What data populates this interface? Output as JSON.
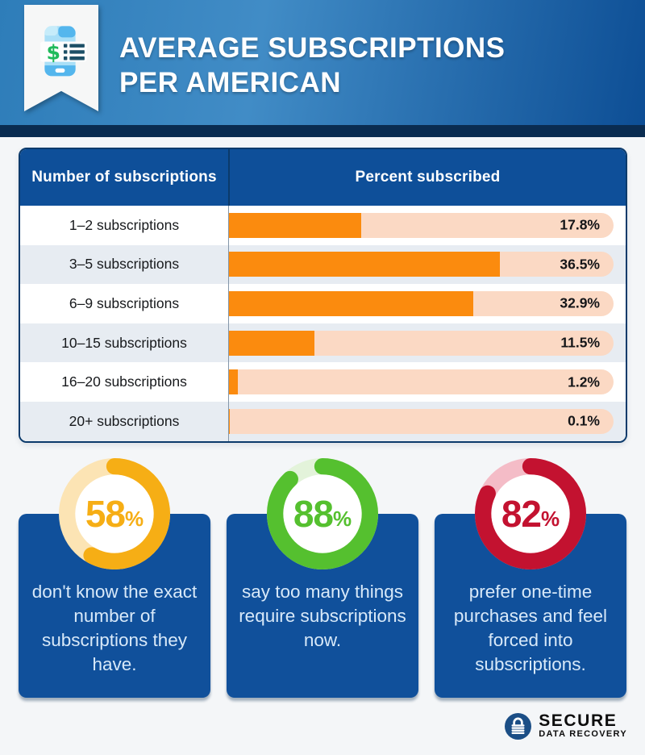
{
  "header": {
    "title_line1": "AVERAGE SUBSCRIPTIONS",
    "title_line2": "PER AMERICAN",
    "icon": "phone-dollar-list-icon"
  },
  "table": {
    "col1_header": "Number of subscriptions",
    "col2_header": "Percent subscribed",
    "bar_color": "#fb8b0e",
    "track_color": "#fbd9c4",
    "rows": [
      {
        "label": "1–2 subscriptions",
        "value": 17.8,
        "pct": "17.8%"
      },
      {
        "label": "3–5 subscriptions",
        "value": 36.5,
        "pct": "36.5%"
      },
      {
        "label": "6–9 subscriptions",
        "value": 32.9,
        "pct": "32.9%"
      },
      {
        "label": "10–15 subscriptions",
        "value": 11.5,
        "pct": "11.5%"
      },
      {
        "label": "16–20 subscriptions",
        "value": 1.2,
        "pct": "1.2%"
      },
      {
        "label": "20+ subscriptions",
        "value": 0.1,
        "pct": "0.1%"
      }
    ]
  },
  "stats": [
    {
      "value": 58,
      "number": "58",
      "unit": "%",
      "ring_color": "#f6ae15",
      "track_color": "#fce4b4",
      "text": "don't know the exact number of subscriptions they have."
    },
    {
      "value": 88,
      "number": "88",
      "unit": "%",
      "ring_color": "#55c02f",
      "track_color": "#e3f3da",
      "text": "say too many things require subscriptions now."
    },
    {
      "value": 82,
      "number": "82",
      "unit": "%",
      "ring_color": "#c31230",
      "track_color": "#f4bcc7",
      "text": "prefer one-time purchases and feel forced into subscriptions."
    }
  ],
  "footer": {
    "brand_line1": "SECURE",
    "brand_line2": "DATA RECOVERY",
    "icon": "padlock-icon"
  },
  "chart_data": [
    {
      "type": "bar",
      "orientation": "horizontal",
      "title": "AVERAGE SUBSCRIPTIONS PER AMERICAN",
      "categories": [
        "1–2 subscriptions",
        "3–5 subscriptions",
        "6–9 subscriptions",
        "10–15 subscriptions",
        "16–20 subscriptions",
        "20+ subscriptions"
      ],
      "values": [
        17.8,
        36.5,
        32.9,
        11.5,
        1.2,
        0.1
      ],
      "value_labels": [
        "17.8%",
        "36.5%",
        "32.9%",
        "11.5%",
        "1.2%",
        "0.1%"
      ],
      "xlabel": "Percent subscribed",
      "ylabel": "Number of subscriptions",
      "bar_color": "#fb8b0e",
      "grid": false,
      "legend": false
    },
    {
      "type": "pie",
      "subtype": "donut",
      "value": 58,
      "color": "#f6ae15",
      "label": "don't know the exact number of subscriptions they have."
    },
    {
      "type": "pie",
      "subtype": "donut",
      "value": 88,
      "color": "#55c02f",
      "label": "say too many things require subscriptions now."
    },
    {
      "type": "pie",
      "subtype": "donut",
      "value": 82,
      "color": "#c31230",
      "label": "prefer one-time purchases and feel forced into subscriptions."
    }
  ]
}
